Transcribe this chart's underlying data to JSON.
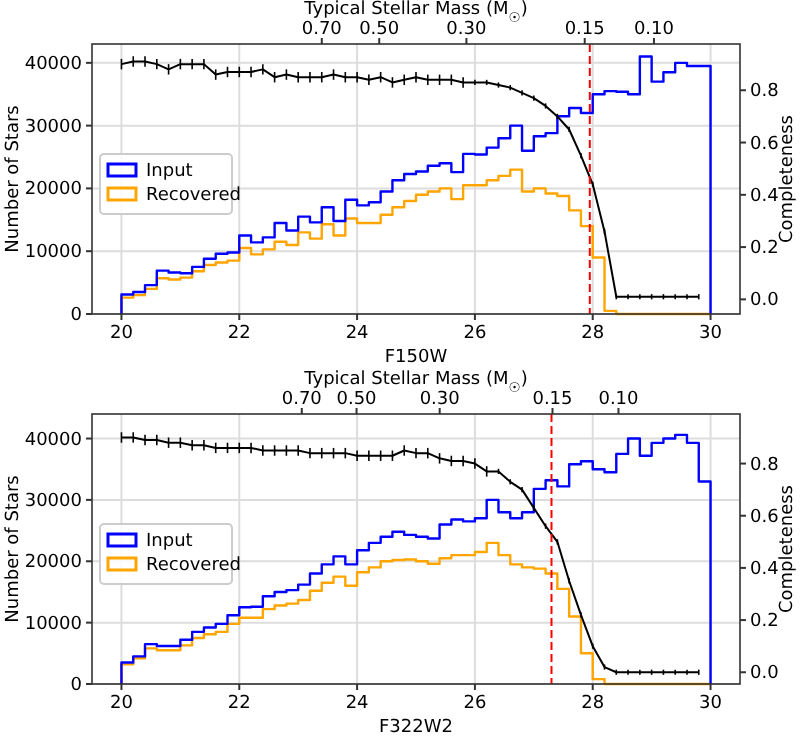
{
  "chart_data": [
    {
      "type": "histogram",
      "xlabel": "F150W",
      "ylabel": "Number of Stars",
      "y2label": "Completeness",
      "x2label": "Typical Stellar Mass (M$_{☉}$)",
      "legend": "left",
      "grid": true,
      "bins": [
        20,
        20.2,
        20.4,
        20.6,
        20.8,
        21,
        21.2,
        21.4,
        21.6,
        21.8,
        22,
        22.2,
        22.4,
        22.6,
        22.8,
        23,
        23.2,
        23.4,
        23.6,
        23.8,
        24,
        24.2,
        24.4,
        24.6,
        24.8,
        25,
        25.2,
        25.4,
        25.6,
        25.8,
        26,
        26.2,
        26.4,
        26.6,
        26.8,
        27,
        27.2,
        27.4,
        27.6,
        27.8,
        28,
        28.2,
        28.4,
        28.6,
        28.8,
        29,
        29.2,
        29.4,
        29.6,
        29.8,
        30
      ],
      "series": [
        {
          "name": "Input",
          "color": "#0000ff",
          "values": [
            3100,
            3500,
            4600,
            6900,
            6600,
            6500,
            7500,
            8800,
            9600,
            9800,
            12500,
            11400,
            12200,
            14500,
            13300,
            15500,
            14600,
            17000,
            14800,
            18200,
            17300,
            17800,
            19500,
            21300,
            22300,
            22700,
            23600,
            24000,
            22600,
            25500,
            25400,
            26500,
            28000,
            30000,
            26000,
            28300,
            28800,
            31500,
            32800,
            32000,
            35000,
            35500,
            35400,
            35000,
            41000,
            37000,
            38500,
            40000,
            39500,
            39500
          ]
        },
        {
          "name": "Recovered",
          "color": "#ffa500",
          "values": [
            2600,
            3000,
            4000,
            5700,
            5500,
            5800,
            6800,
            7800,
            8200,
            8500,
            10500,
            9500,
            10300,
            11500,
            11000,
            13000,
            12000,
            14300,
            12500,
            15200,
            14500,
            14500,
            15800,
            17000,
            18000,
            19000,
            19500,
            20000,
            18300,
            20500,
            20500,
            21300,
            22000,
            23000,
            19500,
            20000,
            19200,
            18800,
            16500,
            14000,
            9000,
            500,
            0,
            0,
            0,
            0,
            0,
            0,
            0,
            0
          ]
        },
        {
          "type": "line",
          "axis": "y2",
          "color": "#000000",
          "x": [
            20,
            20.2,
            20.4,
            20.6,
            20.8,
            21,
            21.2,
            21.4,
            21.6,
            21.8,
            22,
            22.2,
            22.4,
            22.6,
            22.8,
            23,
            23.2,
            23.4,
            23.6,
            23.8,
            24,
            24.2,
            24.4,
            24.6,
            24.8,
            25,
            25.2,
            25.4,
            25.6,
            25.8,
            26,
            26.2,
            26.4,
            26.6,
            26.8,
            27,
            27.2,
            27.4,
            27.6,
            27.8,
            28,
            28.2,
            28.4,
            28.6,
            28.8,
            29,
            29.2,
            29.4,
            29.6,
            29.8
          ],
          "values": [
            0.9,
            0.91,
            0.91,
            0.9,
            0.88,
            0.9,
            0.9,
            0.9,
            0.86,
            0.87,
            0.87,
            0.87,
            0.88,
            0.85,
            0.86,
            0.85,
            0.85,
            0.85,
            0.86,
            0.85,
            0.85,
            0.84,
            0.85,
            0.83,
            0.84,
            0.85,
            0.84,
            0.84,
            0.84,
            0.83,
            0.83,
            0.83,
            0.82,
            0.81,
            0.79,
            0.77,
            0.74,
            0.7,
            0.65,
            0.55,
            0.44,
            0.26,
            0.01,
            0.01,
            0.01,
            0.01,
            0.01,
            0.01,
            0.01,
            0.01
          ],
          "errors": [
            0.02,
            0.02,
            0.02,
            0.02,
            0.02,
            0.02,
            0.02,
            0.02,
            0.02,
            0.02,
            0.02,
            0.02,
            0.02,
            0.02,
            0.02,
            0.02,
            0.02,
            0.02,
            0.02,
            0.02,
            0.02,
            0.02,
            0.02,
            0.02,
            0.02,
            0.02,
            0.02,
            0.02,
            0.02,
            0.02,
            0.01,
            0.01,
            0.01,
            0.01,
            0.01,
            0.01,
            0.01,
            0.01,
            0.01,
            0.01,
            0.01,
            0.01,
            0.01,
            0.01,
            0.01,
            0.01,
            0.01,
            0.01,
            0.01,
            0.01
          ]
        }
      ],
      "xlim": [
        19.5,
        30.5
      ],
      "xticks": [
        20,
        22,
        24,
        26,
        28,
        30
      ],
      "ylim": [
        0,
        43000
      ],
      "yticks": [
        0,
        10000,
        20000,
        30000,
        40000
      ],
      "y2lim": [
        -0.056,
        0.977
      ],
      "y2ticks": [
        {
          "value": 0,
          "label": "0.0"
        },
        {
          "value": 0.2,
          "label": "0.2"
        },
        {
          "value": 0.4,
          "label": "0.4"
        },
        {
          "value": 0.6,
          "label": "0.6"
        },
        {
          "value": 0.8,
          "label": "0.8"
        }
      ],
      "log": "x2",
      "x2lim": [
        2.69,
        0.0604
      ],
      "x2ticks": [
        {
          "value": 0.7,
          "label": "0.70"
        },
        {
          "value": 0.5,
          "label": "0.50"
        },
        {
          "value": 0.3,
          "label": "0.30"
        },
        {
          "value": 0.15,
          "label": "0.15"
        },
        {
          "value": 0.1,
          "label": "0.10"
        }
      ],
      "ref_lines": [
        {
          "axis": "x",
          "value": 27.95,
          "color": "#ff0000",
          "line_style": "dashed"
        }
      ]
    },
    {
      "type": "histogram",
      "xlabel": "F322W2",
      "ylabel": "Number of Stars",
      "y2label": "Completeness",
      "x2label": "Typical Stellar Mass (M$_{☉}$)",
      "legend": "left",
      "grid": true,
      "bins": [
        20,
        20.2,
        20.4,
        20.6,
        20.8,
        21,
        21.2,
        21.4,
        21.6,
        21.8,
        22,
        22.2,
        22.4,
        22.6,
        22.8,
        23,
        23.2,
        23.4,
        23.6,
        23.8,
        24,
        24.2,
        24.4,
        24.6,
        24.8,
        25,
        25.2,
        25.4,
        25.6,
        25.8,
        26,
        26.2,
        26.4,
        26.6,
        26.8,
        27,
        27.2,
        27.4,
        27.6,
        27.8,
        28,
        28.2,
        28.4,
        28.6,
        28.8,
        29,
        29.2,
        29.4,
        29.6,
        29.8,
        30
      ],
      "series": [
        {
          "name": "Input",
          "color": "#0000ff",
          "values": [
            3500,
            4500,
            6500,
            6200,
            6200,
            7200,
            8500,
            9200,
            9800,
            11200,
            12500,
            12600,
            14300,
            15000,
            15300,
            16200,
            18000,
            19500,
            20800,
            19500,
            21800,
            23000,
            24000,
            24800,
            24300,
            24000,
            23700,
            26000,
            26800,
            26500,
            27000,
            30000,
            28000,
            27000,
            28000,
            31800,
            33200,
            32200,
            35800,
            36300,
            35000,
            34500,
            37500,
            40000,
            37200,
            39300,
            40000,
            40600,
            39300,
            33000
          ]
        },
        {
          "name": "Recovered",
          "color": "#ffa500",
          "values": [
            3200,
            4200,
            5800,
            5500,
            5500,
            6300,
            7500,
            8100,
            8500,
            9800,
            10800,
            10800,
            12200,
            12800,
            13100,
            13700,
            15200,
            16500,
            17500,
            16000,
            18200,
            19000,
            20000,
            20200,
            20300,
            20000,
            19600,
            20500,
            21000,
            21000,
            21500,
            23000,
            21000,
            19500,
            19000,
            18800,
            18000,
            15500,
            11000,
            5000,
            800,
            0,
            0,
            0,
            0,
            0,
            0,
            0,
            0,
            0
          ]
        },
        {
          "type": "line",
          "axis": "y2",
          "color": "#000000",
          "x": [
            20,
            20.2,
            20.4,
            20.6,
            20.8,
            21,
            21.2,
            21.4,
            21.6,
            21.8,
            22,
            22.2,
            22.4,
            22.6,
            22.8,
            23,
            23.2,
            23.4,
            23.6,
            23.8,
            24,
            24.2,
            24.4,
            24.6,
            24.8,
            25,
            25.2,
            25.4,
            25.6,
            25.8,
            26,
            26.2,
            26.4,
            26.6,
            26.8,
            27,
            27.2,
            27.4,
            27.6,
            27.8,
            28,
            28.2,
            28.4,
            28.6,
            28.8,
            29,
            29.2,
            29.4,
            29.6,
            29.8
          ],
          "values": [
            0.9,
            0.9,
            0.89,
            0.89,
            0.88,
            0.88,
            0.87,
            0.87,
            0.86,
            0.86,
            0.86,
            0.86,
            0.85,
            0.85,
            0.85,
            0.85,
            0.84,
            0.84,
            0.84,
            0.84,
            0.83,
            0.83,
            0.83,
            0.83,
            0.85,
            0.84,
            0.84,
            0.82,
            0.81,
            0.81,
            0.8,
            0.77,
            0.77,
            0.73,
            0.7,
            0.63,
            0.56,
            0.5,
            0.35,
            0.22,
            0.1,
            0.02,
            0,
            0,
            0,
            0,
            0,
            0,
            0,
            0
          ],
          "errors": [
            0.02,
            0.02,
            0.02,
            0.02,
            0.02,
            0.02,
            0.02,
            0.02,
            0.02,
            0.02,
            0.02,
            0.02,
            0.02,
            0.02,
            0.02,
            0.02,
            0.02,
            0.02,
            0.02,
            0.02,
            0.02,
            0.02,
            0.02,
            0.02,
            0.02,
            0.02,
            0.02,
            0.02,
            0.02,
            0.02,
            0.02,
            0.02,
            0.01,
            0.01,
            0.01,
            0.01,
            0.01,
            0.01,
            0.01,
            0.01,
            0.01,
            0.01,
            0.01,
            0.01,
            0.01,
            0.01,
            0.01,
            0.01,
            0.01,
            0.01
          ]
        }
      ],
      "xlim": [
        19.5,
        30.5
      ],
      "xticks": [
        20,
        22,
        24,
        26,
        28,
        30
      ],
      "ylim": [
        0,
        44000
      ],
      "yticks": [
        0,
        10000,
        20000,
        30000,
        40000
      ],
      "y2lim": [
        -0.045,
        0.99
      ],
      "y2ticks": [
        {
          "value": 0,
          "label": "0.0"
        },
        {
          "value": 0.2,
          "label": "0.2"
        },
        {
          "value": 0.4,
          "label": "0.4"
        },
        {
          "value": 0.6,
          "label": "0.6"
        },
        {
          "value": 0.8,
          "label": "0.8"
        }
      ],
      "log": "x2",
      "x2lim": [
        2.54,
        0.0474
      ],
      "x2ticks": [
        {
          "value": 0.7,
          "label": "0.70"
        },
        {
          "value": 0.5,
          "label": "0.50"
        },
        {
          "value": 0.3,
          "label": "0.30"
        },
        {
          "value": 0.15,
          "label": "0.15"
        },
        {
          "value": 0.1,
          "label": "0.10"
        }
      ],
      "ref_lines": [
        {
          "axis": "x",
          "value": 27.3,
          "color": "#ff0000",
          "line_style": "dashed"
        }
      ]
    }
  ]
}
